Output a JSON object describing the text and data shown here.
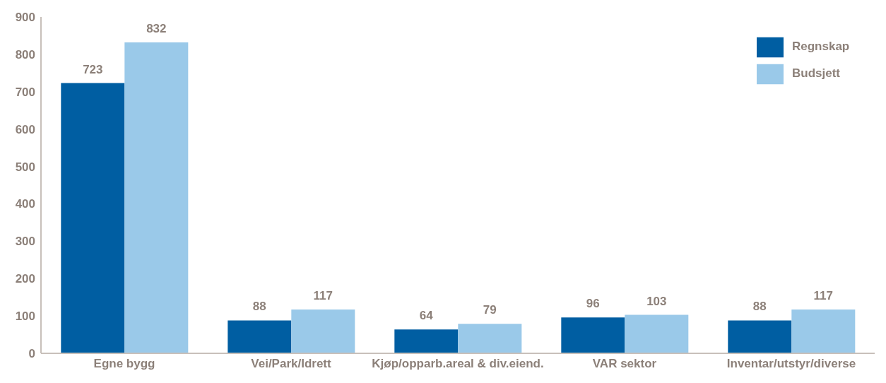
{
  "chart_data": {
    "type": "bar",
    "categories": [
      "Egne bygg",
      "Vei/Park/Idrett",
      "Kjøp/opparb.areal & div.eiend.",
      "VAR sektor",
      "Inventar/utstyr/diverse"
    ],
    "series": [
      {
        "name": "Regnskap",
        "color": "#005ea2",
        "values": [
          723,
          88,
          64,
          96,
          88
        ]
      },
      {
        "name": "Budsjett",
        "color": "#9ac9e9",
        "values": [
          832,
          117,
          79,
          103,
          117
        ]
      }
    ],
    "ylim": [
      0,
      900
    ],
    "yticks": [
      0,
      100,
      200,
      300,
      400,
      500,
      600,
      700,
      800,
      900
    ],
    "data_labels": true,
    "legend": "top right"
  }
}
